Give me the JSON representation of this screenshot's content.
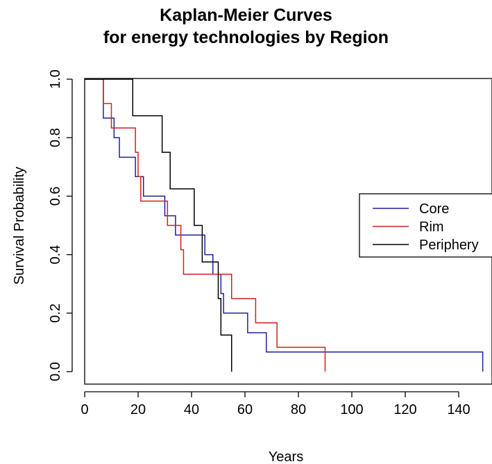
{
  "chart_data": {
    "type": "line",
    "step": true,
    "title": [
      "Kaplan-Meier Curves",
      "for energy technologies by Region"
    ],
    "xlabel": "Years",
    "ylabel": "Survival Probability",
    "xlim": [
      0,
      150
    ],
    "ylim": [
      0,
      1
    ],
    "xticks": [
      0,
      20,
      40,
      60,
      80,
      100,
      120,
      140
    ],
    "yticks": [
      0.0,
      0.2,
      0.4,
      0.6,
      0.8,
      1.0
    ],
    "xtick_labels": [
      "0",
      "20",
      "40",
      "60",
      "80",
      "100",
      "120",
      "140"
    ],
    "ytick_labels": [
      "0.0",
      "0.2",
      "0.4",
      "0.6",
      "0.8",
      "1.0"
    ],
    "grid": false,
    "legend_position": "right",
    "series": [
      {
        "name": "Core",
        "color": "#1f1fa0",
        "points": [
          [
            0,
            1.0
          ],
          [
            7,
            0.867
          ],
          [
            11,
            0.8
          ],
          [
            13,
            0.733
          ],
          [
            19,
            0.667
          ],
          [
            22,
            0.6
          ],
          [
            30,
            0.533
          ],
          [
            34,
            0.467
          ],
          [
            45,
            0.4
          ],
          [
            48,
            0.333
          ],
          [
            51,
            0.267
          ],
          [
            52,
            0.2
          ],
          [
            61,
            0.133
          ],
          [
            68,
            0.067
          ],
          [
            149,
            0.0
          ]
        ]
      },
      {
        "name": "Rim",
        "color": "#d02020",
        "points": [
          [
            0,
            1.0
          ],
          [
            7,
            0.917
          ],
          [
            10,
            0.833
          ],
          [
            19,
            0.75
          ],
          [
            20,
            0.667
          ],
          [
            21,
            0.583
          ],
          [
            31,
            0.5
          ],
          [
            36,
            0.417
          ],
          [
            37,
            0.333
          ],
          [
            55,
            0.25
          ],
          [
            64,
            0.167
          ],
          [
            72,
            0.083
          ],
          [
            90,
            0.0
          ]
        ]
      },
      {
        "name": "Periphery",
        "color": "#000000",
        "points": [
          [
            0,
            1.0
          ],
          [
            18,
            0.875
          ],
          [
            29,
            0.75
          ],
          [
            32,
            0.625
          ],
          [
            41,
            0.5
          ],
          [
            44,
            0.375
          ],
          [
            50,
            0.25
          ],
          [
            51,
            0.125
          ],
          [
            55,
            0.0
          ]
        ]
      }
    ]
  }
}
